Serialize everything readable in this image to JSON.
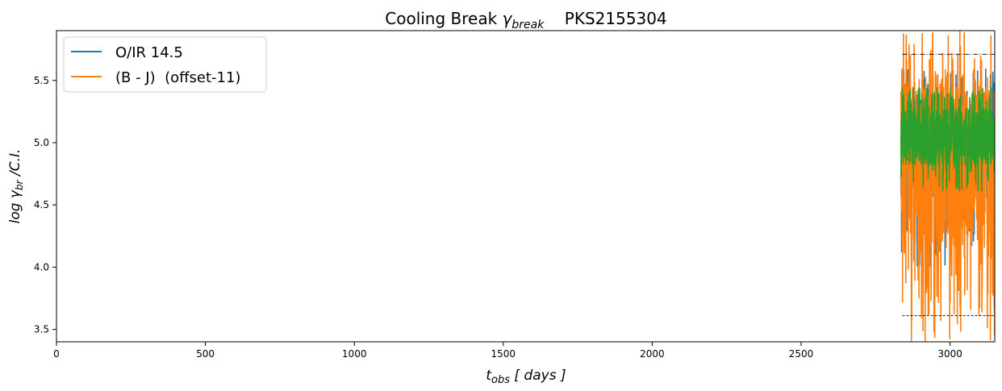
{
  "chart_data": {
    "type": "line",
    "title": "Cooling Break γbreak    PKS2155304",
    "title_parts": {
      "main": "Cooling Break ",
      "symbol": "γ",
      "symbol_sub": "break",
      "source": "PKS2155304"
    },
    "xlabel_parts": {
      "var": "t",
      "sub": "obs",
      "units": " [ days ]"
    },
    "ylabel_parts": {
      "prefix": "log ",
      "var": "γ",
      "sub": "br",
      "suffix": " /C.I."
    },
    "xlim": [
      0,
      3150
    ],
    "ylim": [
      3.4,
      5.9
    ],
    "x_ticks": [
      0,
      500,
      1000,
      1500,
      2000,
      2500,
      3000
    ],
    "x_tick_labels": [
      "0",
      "500",
      "1000",
      "1500",
      "2000",
      "2500",
      "3000"
    ],
    "y_ticks": [
      3.5,
      4.0,
      4.5,
      5.0,
      5.5
    ],
    "y_tick_labels": [
      "3.5",
      "4.0",
      "4.5",
      "5.0",
      "5.5"
    ],
    "grid": false,
    "legend_position": "top-left",
    "data_x_range": [
      2835,
      3150
    ],
    "series": [
      {
        "name": "O/IR 14.5",
        "color": "#1f77b4",
        "band": [
          4.0,
          5.6
        ],
        "center": 4.95
      },
      {
        "name": "(B - J)  (offset-11)",
        "color": "#ff7f0e",
        "band": [
          3.4,
          5.9
        ],
        "center": 4.85
      },
      {
        "name": "",
        "color": "#2ca02c",
        "band": [
          4.6,
          5.45
        ],
        "center": 5.05
      }
    ],
    "reference_lines": [
      {
        "y": 5.71,
        "x_range": [
          2840,
          3150
        ],
        "style": "dashdot",
        "color": "#000000"
      },
      {
        "y": 3.61,
        "x_range": [
          2840,
          3150
        ],
        "style": "dashed",
        "color": "#000000"
      }
    ]
  }
}
